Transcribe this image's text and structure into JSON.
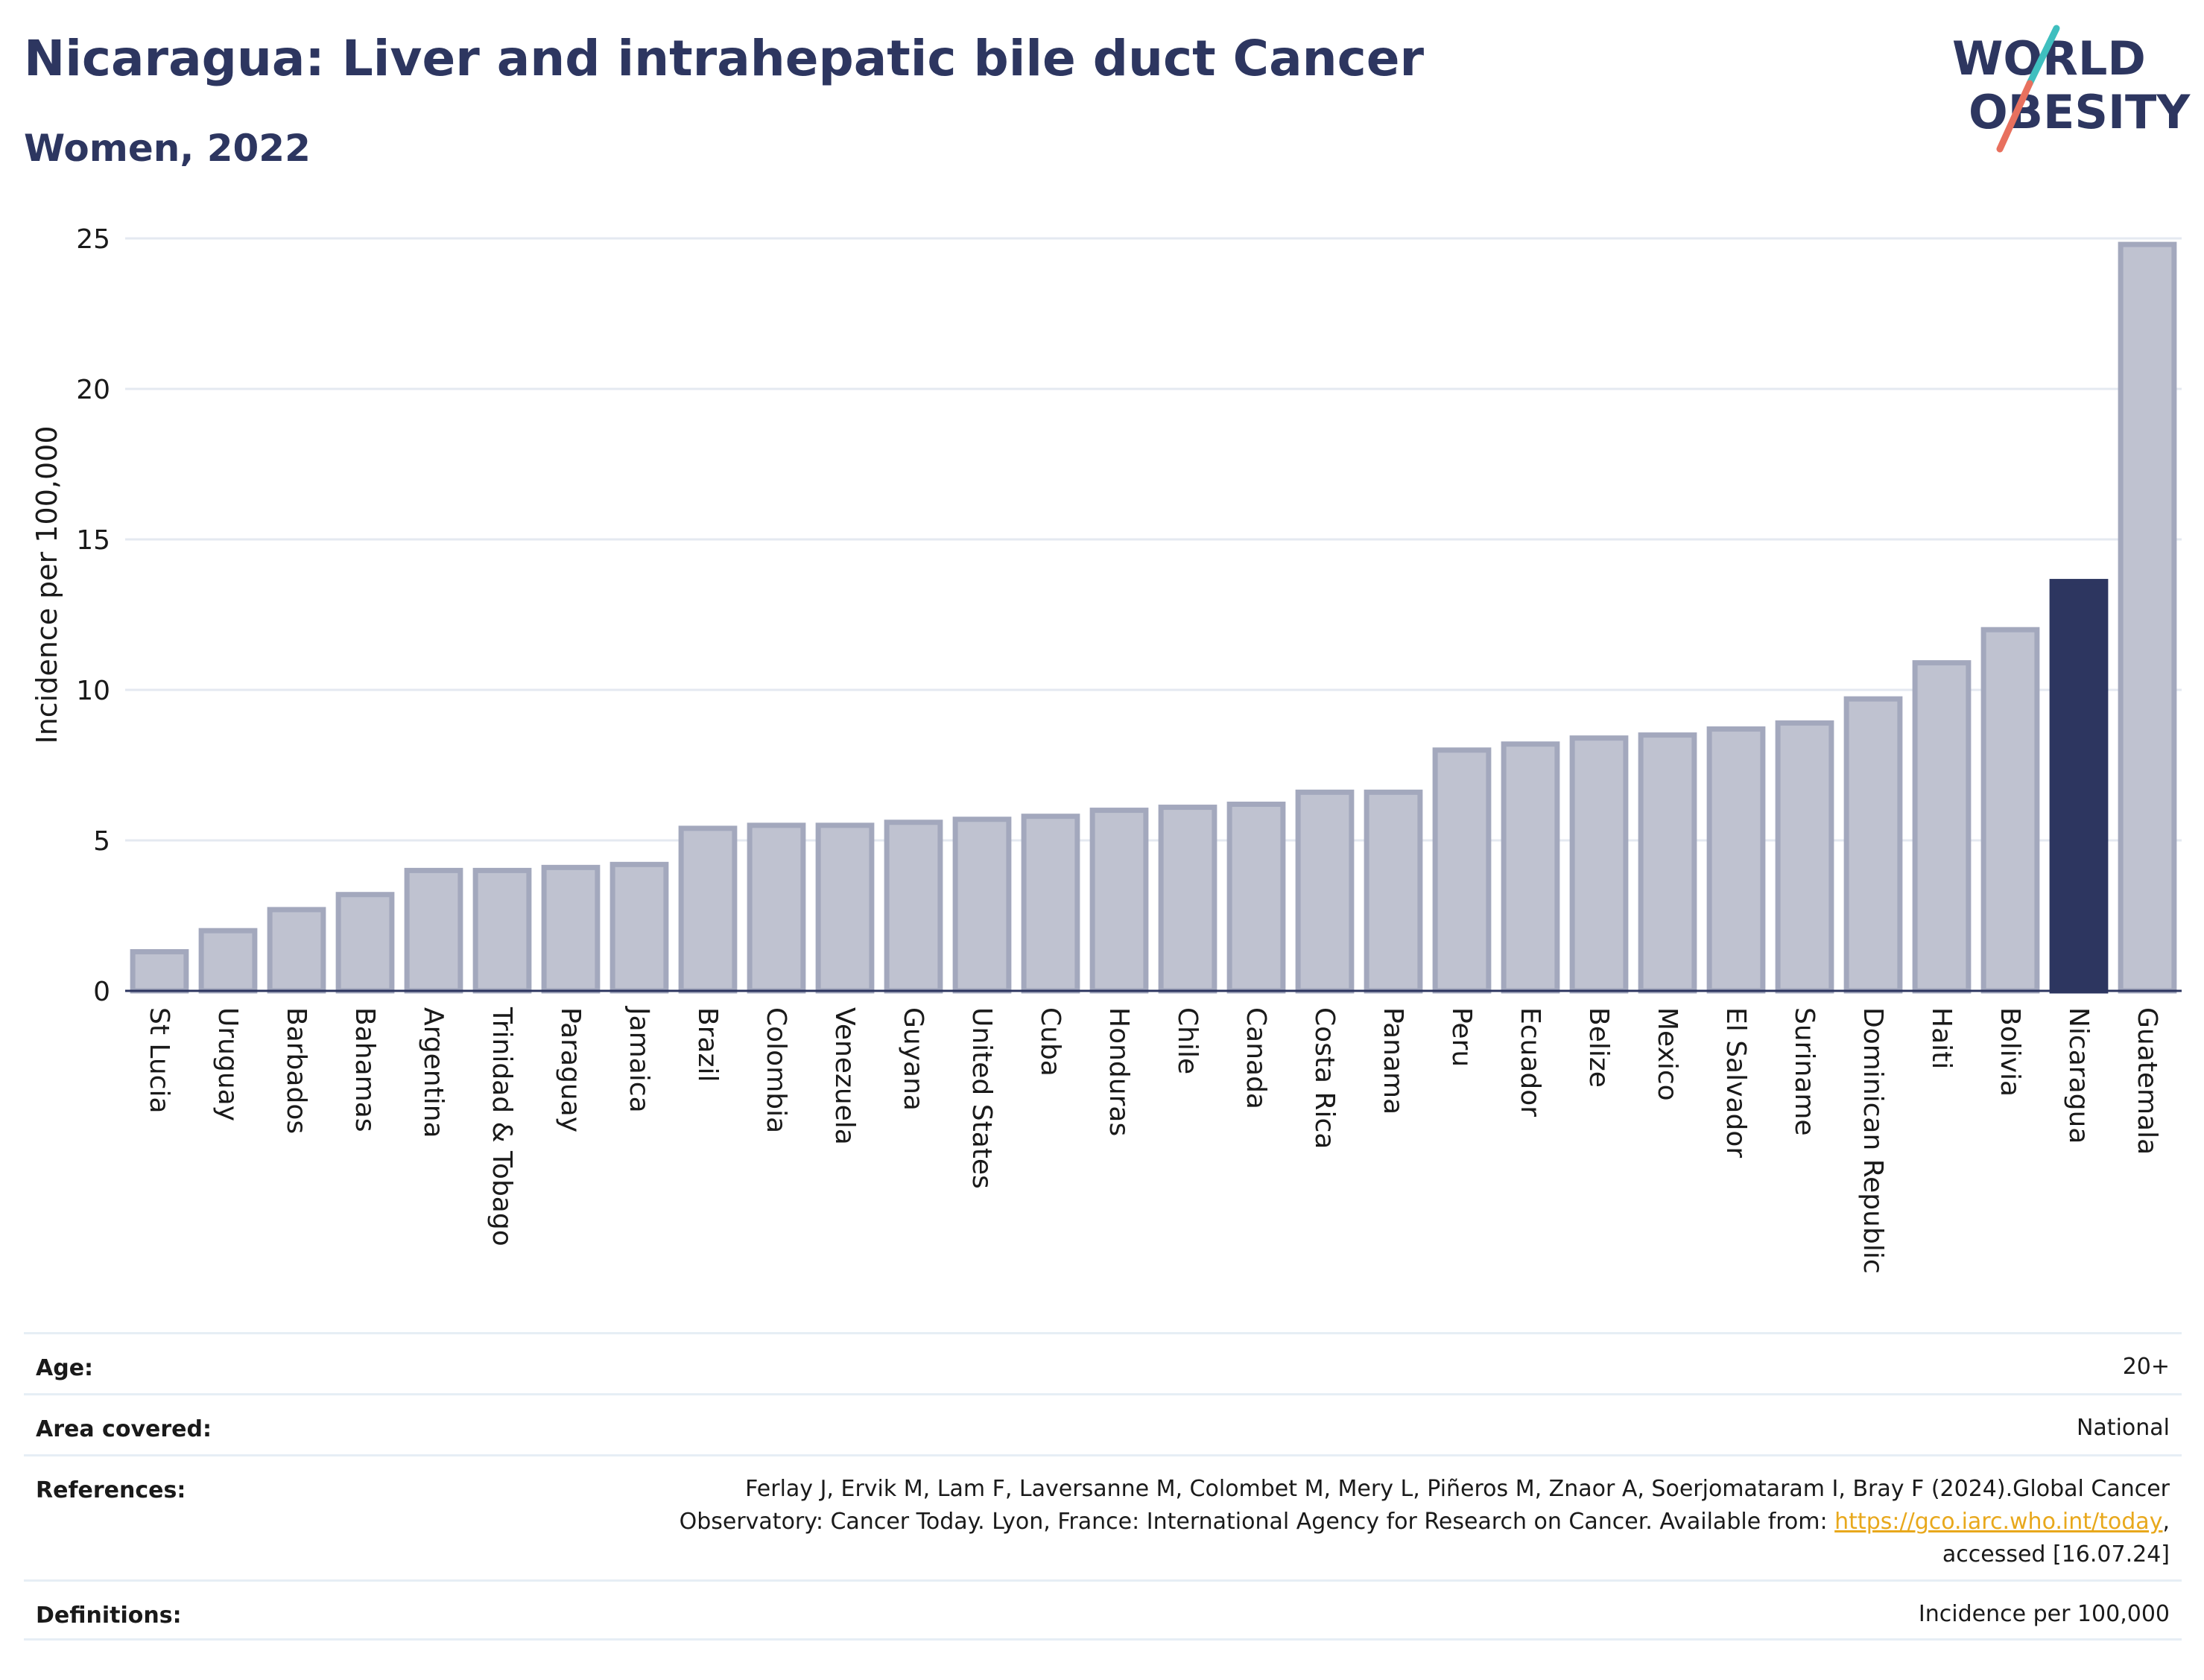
{
  "header": {
    "title": "Nicaragua: Liver and intrahepatic bile duct Cancer",
    "subtitle": "Women, 2022"
  },
  "logo": {
    "line1": "WORLD",
    "line2": "OBESITY"
  },
  "colors": {
    "bar": "#bfc2d0",
    "bar_border": "#a3a8bd",
    "highlight": "#2d3660",
    "grid": "#e4e9f1",
    "axis": "#2d3660",
    "logo_teal": "#3fbfbf",
    "logo_coral": "#e8705e"
  },
  "chart_data": {
    "type": "bar",
    "ylabel": "Incidence per 100,000",
    "ylim": [
      0,
      25
    ],
    "yticks": [
      0,
      5,
      10,
      15,
      20,
      25
    ],
    "grid": true,
    "highlight": "Nicaragua",
    "categories": [
      "St Lucia",
      "Uruguay",
      "Barbados",
      "Bahamas",
      "Argentina",
      "Trinidad & Tobago",
      "Paraguay",
      "Jamaica",
      "Brazil",
      "Colombia",
      "Venezuela",
      "Guyana",
      "United States",
      "Cuba",
      "Honduras",
      "Chile",
      "Canada",
      "Costa Rica",
      "Panama",
      "Peru",
      "Ecuador",
      "Belize",
      "Mexico",
      "El Salvador",
      "Suriname",
      "Dominican Republic",
      "Haiti",
      "Bolivia",
      "Nicaragua",
      "Guatemala"
    ],
    "values": [
      1.3,
      2.0,
      2.7,
      3.2,
      4.0,
      4.0,
      4.1,
      4.2,
      5.4,
      5.5,
      5.5,
      5.6,
      5.7,
      5.8,
      6.0,
      6.1,
      6.2,
      6.6,
      6.6,
      8.0,
      8.2,
      8.4,
      8.5,
      8.7,
      8.9,
      9.7,
      10.9,
      12.0,
      13.6,
      24.8
    ]
  },
  "info": {
    "age_label": "Age:",
    "age_value": "20+",
    "area_label": "Area covered:",
    "area_value": "National",
    "references_label": "References:",
    "references_line1": "Ferlay J, Ervik M, Lam F, Laversanne M, Colombet M, Mery L, Piñeros M, Znaor A, Soerjomataram I, Bray F (2024).Global Cancer",
    "references_line2_prefix": "Observatory: Cancer Today. Lyon, France: International Agency for Research on Cancer. Available from: ",
    "references_link": "https://gco.iarc.who.int/today",
    "references_line2_suffix": ",",
    "references_line3": "accessed [16.07.24]",
    "definitions_label": "Definitions:",
    "definitions_value": "Incidence per 100,000"
  }
}
